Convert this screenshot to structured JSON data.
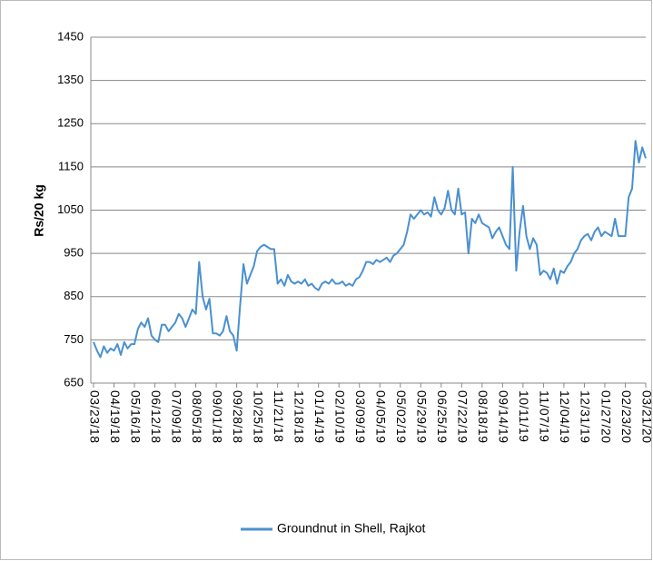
{
  "chart_data": {
    "type": "line",
    "y_label": "Rs/20 kg",
    "ylim": [
      650,
      1450
    ],
    "yticks": [
      650,
      750,
      850,
      950,
      1050,
      1150,
      1250,
      1350,
      1450
    ],
    "grid": true,
    "legend": "bottom",
    "categories": [
      "03/23/18",
      null,
      null,
      null,
      null,
      null,
      "04/19/18",
      null,
      null,
      null,
      null,
      null,
      "05/16/18",
      null,
      null,
      null,
      null,
      null,
      "06/12/18",
      null,
      null,
      null,
      null,
      null,
      "07/09/18",
      null,
      null,
      null,
      null,
      null,
      "08/05/18",
      null,
      null,
      null,
      null,
      null,
      "09/01/18",
      null,
      null,
      null,
      null,
      null,
      "09/28/18",
      null,
      null,
      null,
      null,
      null,
      "10/25/18",
      null,
      null,
      null,
      null,
      null,
      "11/21/18",
      null,
      null,
      null,
      null,
      null,
      "12/18/18",
      null,
      null,
      null,
      null,
      null,
      "01/14/19",
      null,
      null,
      null,
      null,
      null,
      "02/10/19",
      null,
      null,
      null,
      null,
      null,
      "03/09/19",
      null,
      null,
      null,
      null,
      null,
      "04/05/19",
      null,
      null,
      null,
      null,
      null,
      "05/02/19",
      null,
      null,
      null,
      null,
      null,
      "05/29/19",
      null,
      null,
      null,
      null,
      null,
      "06/25/19",
      null,
      null,
      null,
      null,
      null,
      "07/22/19",
      null,
      null,
      null,
      null,
      null,
      "08/18/19",
      null,
      null,
      null,
      null,
      null,
      "09/14/19",
      null,
      null,
      null,
      null,
      null,
      "10/11/19",
      null,
      null,
      null,
      null,
      null,
      "11/07/19",
      null,
      null,
      null,
      null,
      null,
      "12/04/19",
      null,
      null,
      null,
      null,
      null,
      "12/31/19",
      null,
      null,
      null,
      null,
      null,
      "01/27/20",
      null,
      null,
      null,
      null,
      null,
      "02/23/20",
      null,
      null,
      null,
      null,
      null,
      "03/21/20"
    ],
    "series": [
      {
        "name": "Groundnut in Shell, Rajkot",
        "color": "#4a90d0",
        "values": [
          745,
          725,
          710,
          735,
          720,
          730,
          725,
          740,
          715,
          745,
          730,
          740,
          740,
          775,
          790,
          780,
          800,
          760,
          750,
          745,
          785,
          785,
          770,
          780,
          790,
          810,
          800,
          780,
          800,
          820,
          810,
          930,
          850,
          820,
          845,
          765,
          765,
          760,
          770,
          805,
          770,
          760,
          725,
          830,
          925,
          880,
          900,
          920,
          955,
          965,
          970,
          965,
          960,
          960,
          880,
          890,
          875,
          900,
          885,
          880,
          885,
          880,
          890,
          875,
          880,
          870,
          865,
          880,
          885,
          880,
          890,
          880,
          880,
          885,
          875,
          880,
          875,
          890,
          895,
          910,
          930,
          930,
          925,
          935,
          930,
          935,
          940,
          930,
          945,
          950,
          960,
          970,
          1000,
          1040,
          1030,
          1040,
          1050,
          1040,
          1045,
          1035,
          1080,
          1050,
          1040,
          1055,
          1095,
          1050,
          1040,
          1100,
          1040,
          1045,
          950,
          1030,
          1020,
          1040,
          1020,
          1015,
          1010,
          985,
          1000,
          1010,
          990,
          970,
          960,
          1150,
          910,
          1000,
          1060,
          990,
          960,
          985,
          970,
          900,
          910,
          905,
          890,
          915,
          880,
          910,
          905,
          920,
          930,
          950,
          960,
          980,
          990,
          995,
          980,
          1000,
          1010,
          990,
          1000,
          995,
          990,
          1030,
          990,
          990,
          990,
          1080,
          1100,
          1210,
          1160,
          1195,
          1170
        ]
      }
    ]
  }
}
